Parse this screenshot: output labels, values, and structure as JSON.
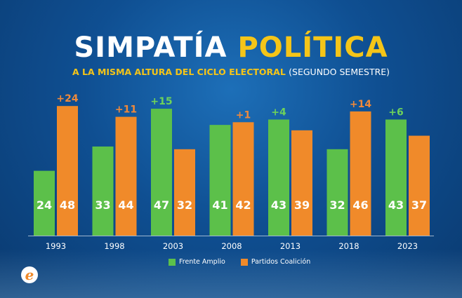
{
  "header": {
    "title_part1": "SIMPATÍA",
    "title_part2": "POLÍTICA",
    "subtitle_part1": "A LA MISMA ALTURA DEL CICLO ELECTORAL",
    "subtitle_part2": "(SEGUNDO SEMESTRE)"
  },
  "colors": {
    "frente_amplio": "#5cc04a",
    "partidos_coalicion": "#f08a2a",
    "diff_green": "#6dd25a",
    "diff_orange": "#f0893a",
    "accent_yellow": "#f5c518"
  },
  "chart_data": {
    "type": "bar",
    "title": "SIMPATÍA POLÍTICA",
    "subtitle": "A LA MISMA ALTURA DEL CICLO ELECTORAL (SEGUNDO SEMESTRE)",
    "categories": [
      "1993",
      "1998",
      "2003",
      "2008",
      "2013",
      "2018",
      "2023"
    ],
    "series": [
      {
        "name": "Frente Amplio",
        "values": [
          24,
          33,
          47,
          41,
          43,
          32,
          43
        ]
      },
      {
        "name": "Partidos Coalición",
        "values": [
          48,
          44,
          32,
          42,
          39,
          46,
          37
        ]
      }
    ],
    "differences": [
      {
        "label": "+24",
        "series": "Partidos Coalición"
      },
      {
        "label": "+11",
        "series": "Partidos Coalición"
      },
      {
        "label": "+15",
        "series": "Frente Amplio"
      },
      {
        "label": "+1",
        "series": "Partidos Coalición"
      },
      {
        "label": "+4",
        "series": "Frente Amplio"
      },
      {
        "label": "+14",
        "series": "Partidos Coalición"
      },
      {
        "label": "+6",
        "series": "Frente Amplio"
      }
    ],
    "ylim": [
      0,
      48
    ],
    "legend_position": "bottom-center",
    "grid": false
  },
  "legend": {
    "frente_amplio": "Frente Amplio",
    "partidos_coalicion": "Partidos Coalición"
  },
  "logo": {
    "letter": "e"
  }
}
